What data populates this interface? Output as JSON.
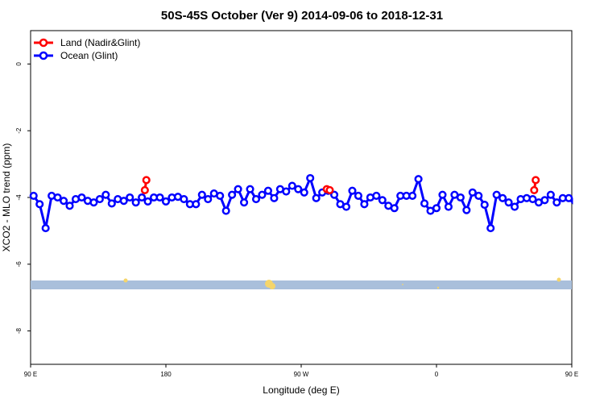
{
  "chart_data": {
    "type": "line",
    "title": "50S-45S October (Ver 9)   2014-09-06 to 2018-12-31",
    "xlabel": "Longitude (deg E)",
    "ylabel": "XCO2 - MLO trend (ppm)",
    "xlim": [
      90,
      450
    ],
    "ylim": [
      -9,
      1
    ],
    "x_ticks": [
      {
        "value": 90,
        "label": "90 E"
      },
      {
        "value": 180,
        "label": "180"
      },
      {
        "value": 270,
        "label": "90 W"
      },
      {
        "value": 360,
        "label": "0"
      },
      {
        "value": 450,
        "label": "90 E"
      },
      {
        "value": 540,
        "label": "180"
      }
    ],
    "y_ticks": [
      {
        "value": 0,
        "label": "0"
      },
      {
        "value": -2,
        "label": "-2"
      },
      {
        "value": -4,
        "label": "-4"
      },
      {
        "value": -6,
        "label": "-6"
      },
      {
        "value": -8,
        "label": "-8"
      }
    ],
    "grid": false,
    "legend_position": "top-left",
    "series": [
      {
        "name": "Land (Nadir&Glint)",
        "color": "#ff0000",
        "points": [
          [
            166,
            -3.78
          ],
          [
            167,
            -3.48
          ],
          [
            287,
            -3.75
          ],
          [
            289,
            -3.78
          ],
          [
            425,
            -3.78
          ],
          [
            426,
            -3.48
          ]
        ]
      },
      {
        "name": "Ocean (Glint)",
        "color": "#0000ff",
        "points": [
          [
            92,
            -3.95
          ],
          [
            96,
            -4.2
          ],
          [
            100,
            -4.92
          ],
          [
            104,
            -3.95
          ],
          [
            108,
            -4.0
          ],
          [
            112,
            -4.1
          ],
          [
            116,
            -4.25
          ],
          [
            120,
            -4.05
          ],
          [
            124,
            -4.0
          ],
          [
            128,
            -4.1
          ],
          [
            132,
            -4.15
          ],
          [
            136,
            -4.05
          ],
          [
            140,
            -3.92
          ],
          [
            144,
            -4.18
          ],
          [
            148,
            -4.05
          ],
          [
            152,
            -4.1
          ],
          [
            156,
            -4.0
          ],
          [
            160,
            -4.15
          ],
          [
            164,
            -4.0
          ],
          [
            168,
            -4.12
          ],
          [
            172,
            -4.0
          ],
          [
            176,
            -4.0
          ],
          [
            180,
            -4.12
          ],
          [
            184,
            -4.0
          ],
          [
            188,
            -3.98
          ],
          [
            192,
            -4.05
          ],
          [
            196,
            -4.2
          ],
          [
            200,
            -4.2
          ],
          [
            204,
            -3.92
          ],
          [
            208,
            -4.05
          ],
          [
            212,
            -3.88
          ],
          [
            216,
            -3.95
          ],
          [
            220,
            -4.4
          ],
          [
            224,
            -3.92
          ],
          [
            228,
            -3.75
          ],
          [
            232,
            -4.15
          ],
          [
            236,
            -3.75
          ],
          [
            240,
            -4.05
          ],
          [
            244,
            -3.92
          ],
          [
            248,
            -3.8
          ],
          [
            252,
            -4.02
          ],
          [
            256,
            -3.75
          ],
          [
            260,
            -3.82
          ],
          [
            264,
            -3.65
          ],
          [
            268,
            -3.75
          ],
          [
            272,
            -3.85
          ],
          [
            276,
            -3.42
          ],
          [
            280,
            -4.02
          ],
          [
            284,
            -3.85
          ],
          [
            288,
            -3.8
          ],
          [
            292,
            -3.92
          ],
          [
            296,
            -4.2
          ],
          [
            300,
            -4.28
          ],
          [
            304,
            -3.8
          ],
          [
            308,
            -3.95
          ],
          [
            312,
            -4.2
          ],
          [
            316,
            -4.0
          ],
          [
            320,
            -3.95
          ],
          [
            324,
            -4.08
          ],
          [
            328,
            -4.25
          ],
          [
            332,
            -4.32
          ],
          [
            336,
            -3.95
          ],
          [
            340,
            -3.95
          ],
          [
            344,
            -3.95
          ],
          [
            348,
            -3.45
          ],
          [
            352,
            -4.18
          ],
          [
            356,
            -4.4
          ],
          [
            360,
            -4.32
          ],
          [
            364,
            -3.92
          ],
          [
            368,
            -4.28
          ],
          [
            372,
            -3.92
          ],
          [
            376,
            -4.0
          ],
          [
            380,
            -4.38
          ],
          [
            384,
            -3.85
          ],
          [
            388,
            -3.95
          ],
          [
            392,
            -4.22
          ],
          [
            396,
            -4.92
          ],
          [
            400,
            -3.92
          ],
          [
            404,
            -4.02
          ],
          [
            408,
            -4.15
          ],
          [
            412,
            -4.28
          ],
          [
            416,
            -4.05
          ],
          [
            420,
            -4.02
          ],
          [
            424,
            -4.05
          ],
          [
            428,
            -4.15
          ],
          [
            432,
            -4.08
          ],
          [
            436,
            -3.92
          ],
          [
            440,
            -4.15
          ],
          [
            444,
            -4.02
          ],
          [
            448,
            -4.02
          ],
          [
            452,
            -4.12
          ],
          [
            456,
            -4.02
          ]
        ]
      }
    ]
  }
}
